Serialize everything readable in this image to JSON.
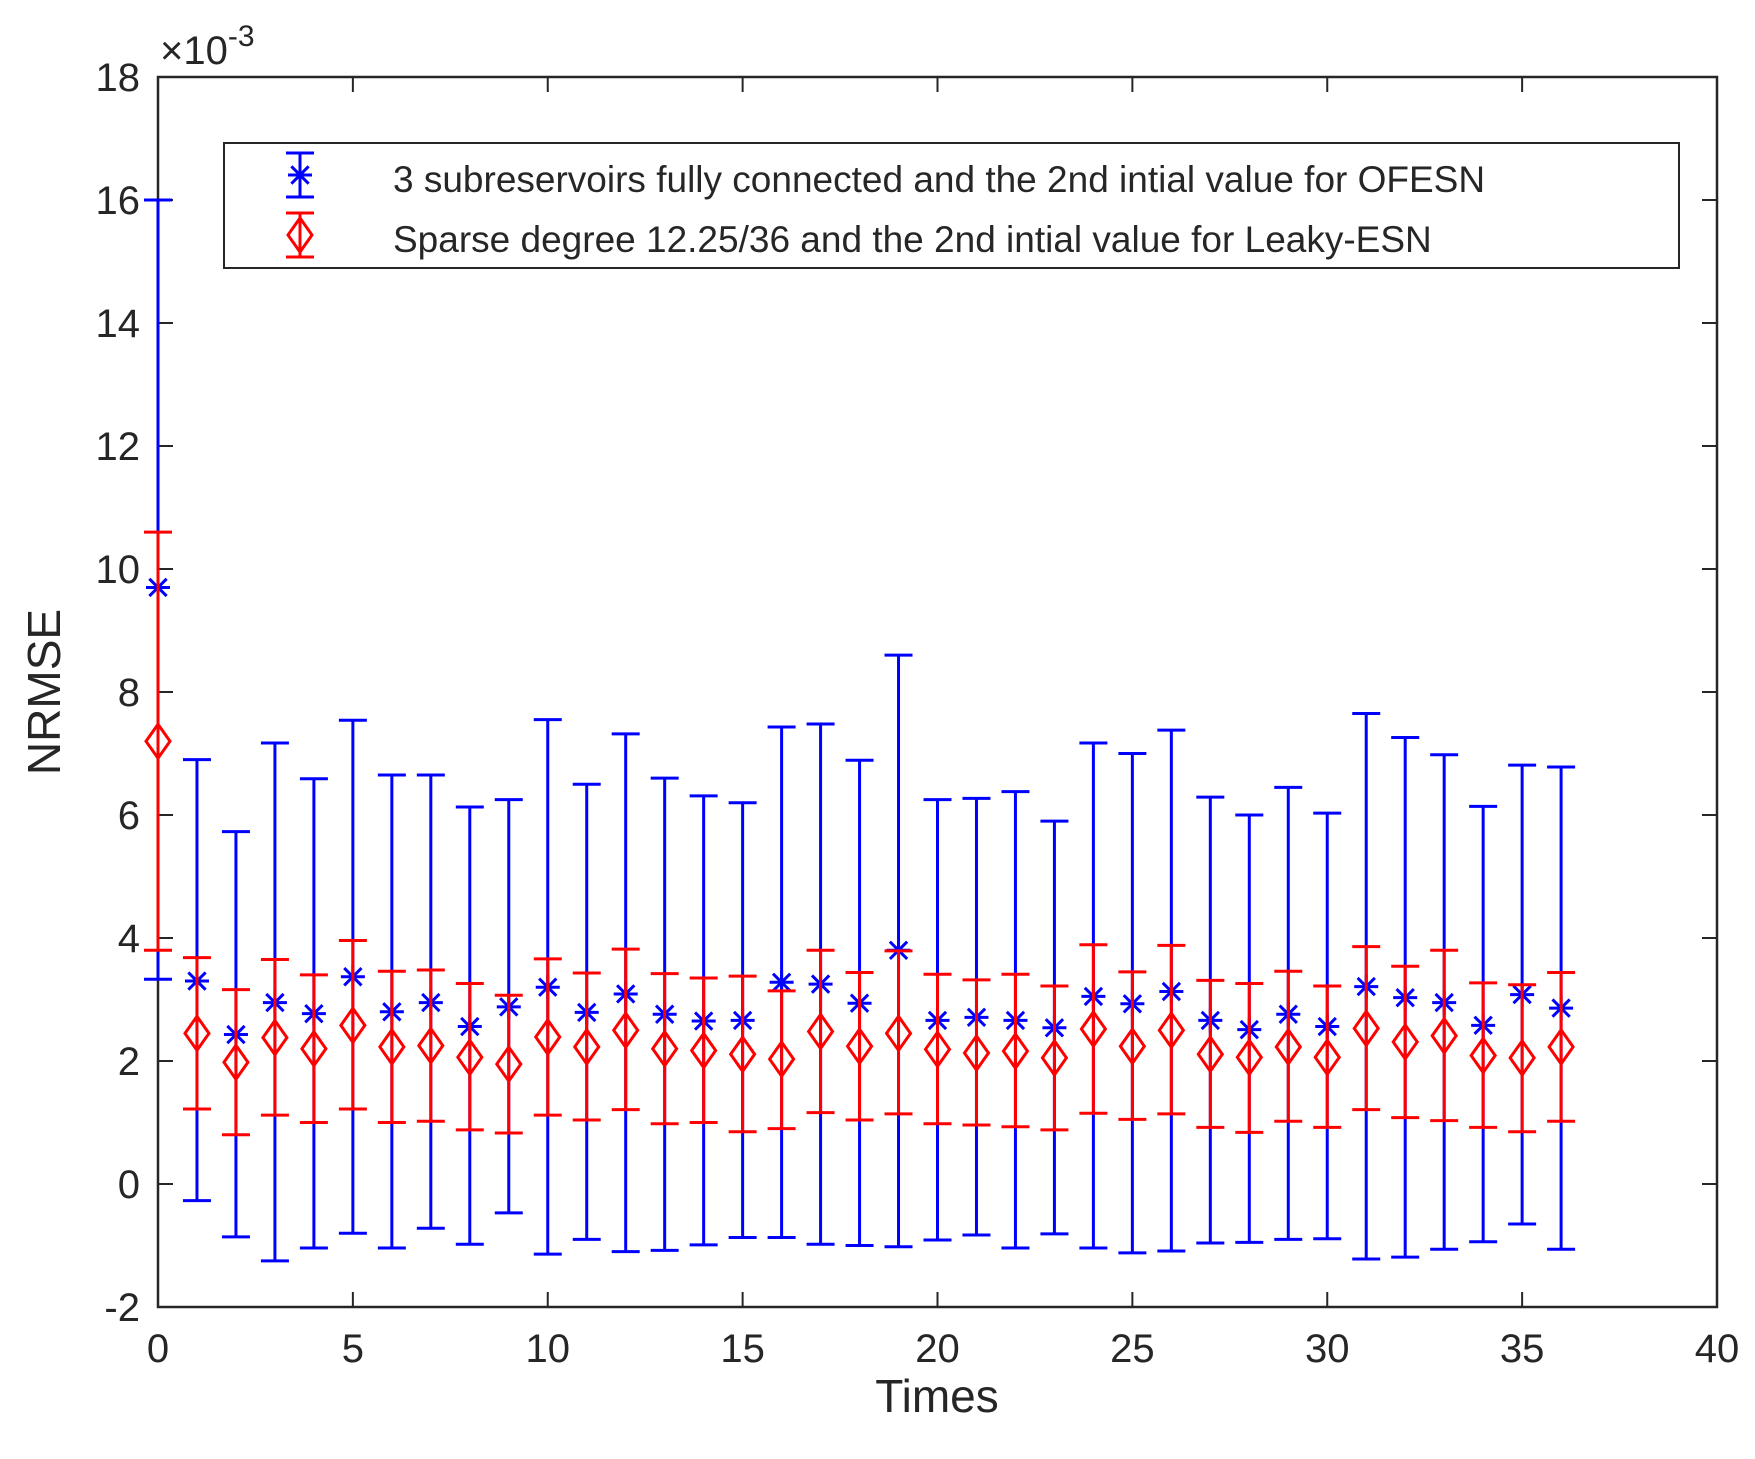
{
  "chart_data": {
    "type": "errorbar",
    "title": "",
    "xlabel": "Times",
    "ylabel": "NRMSE",
    "xlim": [
      0,
      40
    ],
    "ylim": [
      -2,
      18
    ],
    "xticks": [
      "0",
      "5",
      "10",
      "15",
      "20",
      "25",
      "30",
      "35",
      "40"
    ],
    "yticks": [
      "-2",
      "0",
      "2",
      "4",
      "6",
      "8",
      "10",
      "12",
      "14",
      "16",
      "18"
    ],
    "y_multiplier": "×10",
    "y_multiplier_exp": "-3",
    "legend_position": "top",
    "x": [
      0,
      1,
      2,
      3,
      4,
      5,
      6,
      7,
      8,
      9,
      10,
      11,
      12,
      13,
      14,
      15,
      16,
      17,
      18,
      19,
      20,
      21,
      22,
      23,
      24,
      25,
      26,
      27,
      28,
      29,
      30,
      31,
      32,
      33,
      34,
      35,
      36
    ],
    "series": [
      {
        "name": "3 subreservoirs fully connected and the 2nd intial value for OFESN",
        "color": "#0000ff",
        "marker": "asterisk",
        "values": [
          9.7,
          3.3,
          2.43,
          2.95,
          2.77,
          3.37,
          2.8,
          2.95,
          2.56,
          2.88,
          3.2,
          2.79,
          3.09,
          2.76,
          2.65,
          2.66,
          3.28,
          3.25,
          2.94,
          3.8,
          2.66,
          2.71,
          2.66,
          2.54,
          3.05,
          2.93,
          3.13,
          2.66,
          2.51,
          2.76,
          2.56,
          3.21,
          3.03,
          2.95,
          2.58,
          3.08,
          2.86
        ],
        "lower": [
          3.33,
          -0.27,
          -0.86,
          -1.25,
          -1.04,
          -0.8,
          -1.04,
          -0.72,
          -0.98,
          -0.47,
          -1.14,
          -0.9,
          -1.1,
          -1.08,
          -0.99,
          -0.87,
          -0.87,
          -0.98,
          -1.0,
          -1.02,
          -0.91,
          -0.83,
          -1.04,
          -0.81,
          -1.04,
          -1.12,
          -1.09,
          -0.96,
          -0.95,
          -0.9,
          -0.89,
          -1.22,
          -1.19,
          -1.06,
          -0.94,
          -0.65,
          -1.06
        ],
        "upper": [
          16.0,
          6.9,
          5.73,
          7.17,
          6.59,
          7.54,
          6.65,
          6.65,
          6.13,
          6.25,
          7.55,
          6.5,
          7.32,
          6.6,
          6.31,
          6.2,
          7.43,
          7.48,
          6.89,
          8.6,
          6.25,
          6.27,
          6.38,
          5.9,
          7.17,
          7.0,
          7.38,
          6.29,
          6.0,
          6.45,
          6.03,
          7.65,
          7.26,
          6.98,
          6.14,
          6.81,
          6.78
        ]
      },
      {
        "name": "Sparse degree 12.25/36 and the 2nd intial value for Leaky-ESN",
        "color": "#ff0000",
        "marker": "diamond",
        "values": [
          7.2,
          2.45,
          1.98,
          2.38,
          2.2,
          2.58,
          2.23,
          2.25,
          2.06,
          1.95,
          2.39,
          2.23,
          2.5,
          2.2,
          2.17,
          2.11,
          2.03,
          2.48,
          2.24,
          2.45,
          2.19,
          2.13,
          2.16,
          2.05,
          2.52,
          2.24,
          2.5,
          2.11,
          2.06,
          2.23,
          2.06,
          2.53,
          2.31,
          2.41,
          2.09,
          2.05,
          2.23
        ],
        "lower": [
          3.8,
          1.22,
          0.8,
          1.12,
          1.0,
          1.22,
          1.0,
          1.02,
          0.88,
          0.83,
          1.12,
          1.04,
          1.21,
          0.98,
          1.0,
          0.85,
          0.9,
          1.16,
          1.04,
          1.14,
          0.98,
          0.96,
          0.93,
          0.88,
          1.15,
          1.05,
          1.14,
          0.92,
          0.84,
          1.02,
          0.92,
          1.21,
          1.08,
          1.03,
          0.92,
          0.85,
          1.02
        ],
        "upper": [
          10.6,
          3.68,
          3.16,
          3.65,
          3.4,
          3.96,
          3.46,
          3.48,
          3.26,
          3.07,
          3.66,
          3.43,
          3.82,
          3.42,
          3.35,
          3.38,
          3.14,
          3.8,
          3.44,
          3.79,
          3.41,
          3.32,
          3.41,
          3.22,
          3.89,
          3.45,
          3.88,
          3.31,
          3.26,
          3.46,
          3.22,
          3.86,
          3.54,
          3.8,
          3.27,
          3.24,
          3.44
        ]
      }
    ]
  }
}
